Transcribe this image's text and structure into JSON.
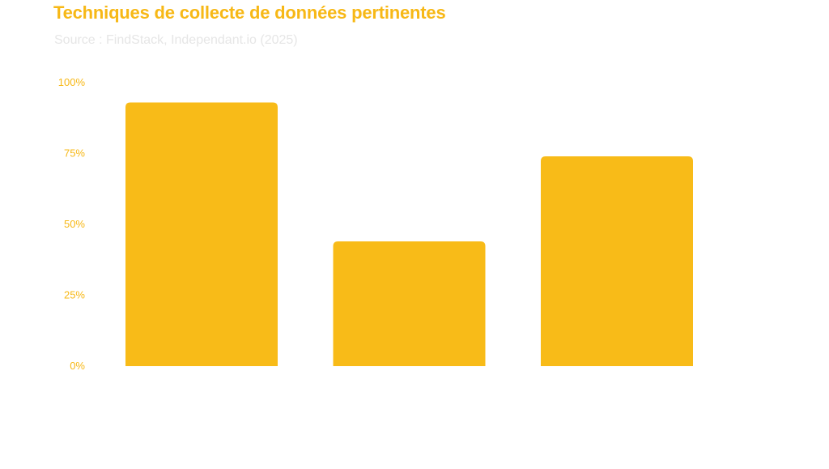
{
  "colors": {
    "bar": "#f8bb18",
    "title": "#f7b816",
    "subtitle": "#e6e6e6",
    "tick": "#f7b816"
  },
  "chart_data": {
    "type": "bar",
    "title": "Techniques de collecte de données pertinentes",
    "subtitle": "Source : FindStack, Independant.io (2025)",
    "categories": [
      "",
      "",
      ""
    ],
    "values": [
      93,
      44,
      74
    ],
    "ylim": [
      0,
      100
    ],
    "yticks": [
      0,
      25,
      50,
      75,
      100
    ],
    "ytick_labels": [
      "0%",
      "25%",
      "50%",
      "75%",
      "100%"
    ],
    "xlabel": "",
    "ylabel": "",
    "grid": false,
    "legend": "none"
  }
}
